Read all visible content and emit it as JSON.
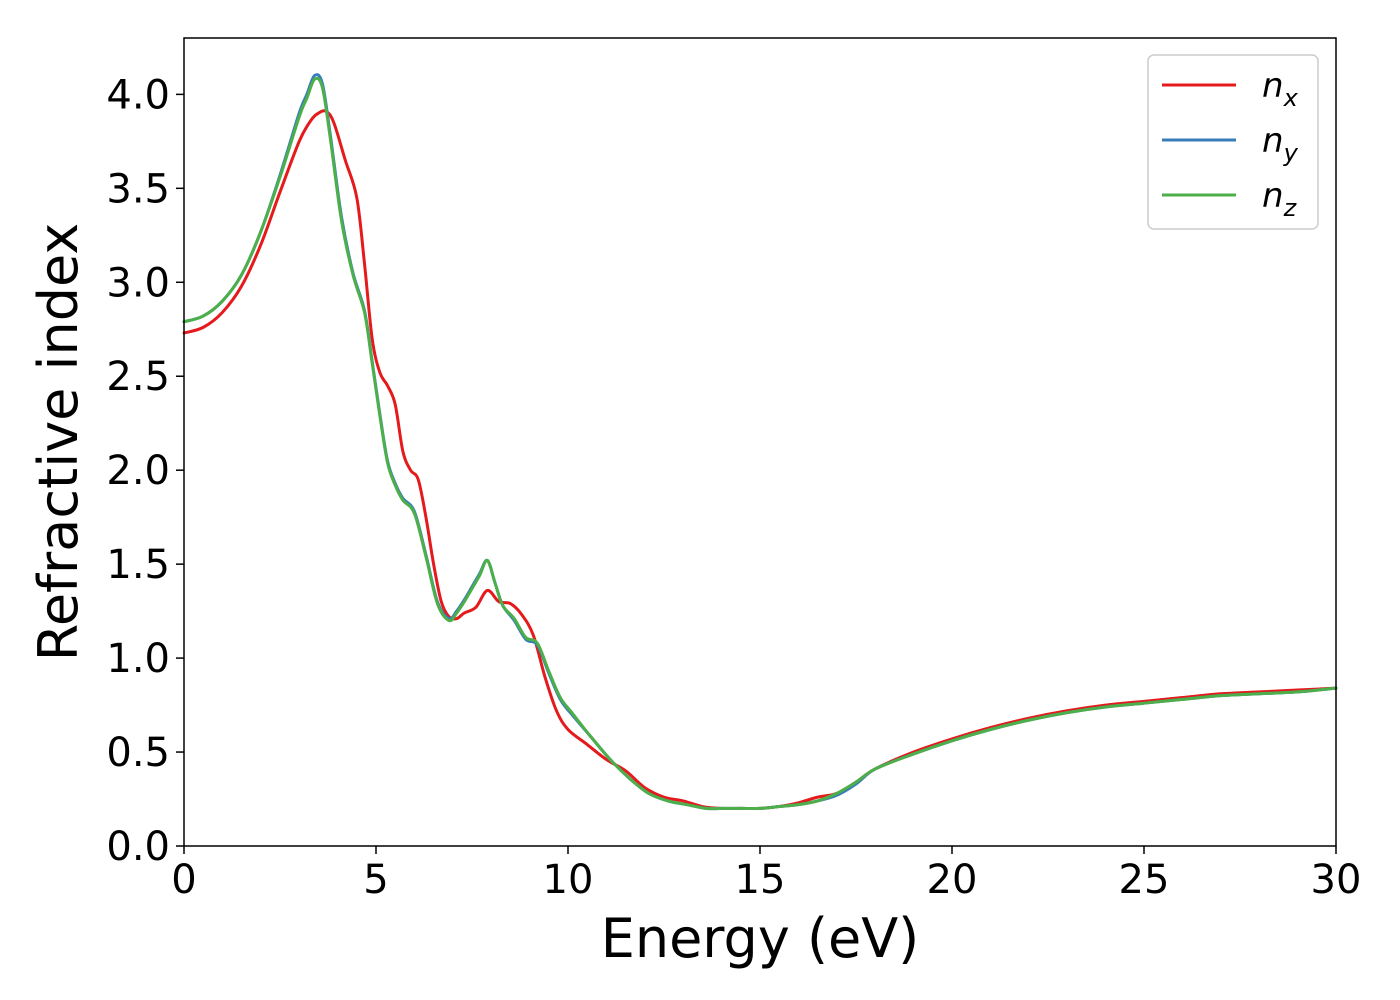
{
  "chart_data": {
    "type": "line",
    "xlabel": "Energy (eV)",
    "ylabel": "Refractive index",
    "xlim": [
      0,
      30
    ],
    "ylim": [
      0,
      4.3
    ],
    "xticks": [
      0,
      5,
      10,
      15,
      20,
      25,
      30
    ],
    "xtick_labels": [
      "0",
      "5",
      "10",
      "15",
      "20",
      "25",
      "30"
    ],
    "yticks": [
      0.0,
      0.5,
      1.0,
      1.5,
      2.0,
      2.5,
      3.0,
      3.5,
      4.0
    ],
    "ytick_labels": [
      "0.0",
      "0.5",
      "1.0",
      "1.5",
      "2.0",
      "2.5",
      "3.0",
      "3.5",
      "4.0"
    ],
    "grid": false,
    "legend_position": "top-right",
    "series": [
      {
        "name": "n",
        "subscript": "x",
        "color": "#e41a1c",
        "x": [
          0,
          0.5,
          1,
          1.5,
          2,
          2.5,
          3,
          3.3,
          3.5,
          3.7,
          3.9,
          4.2,
          4.5,
          4.7,
          4.9,
          5.1,
          5.3,
          5.5,
          5.7,
          5.9,
          6.1,
          6.3,
          6.5,
          6.7,
          6.9,
          7.1,
          7.3,
          7.6,
          7.9,
          8.2,
          8.5,
          8.8,
          9.1,
          9.4,
          9.7,
          10,
          10.5,
          11,
          11.5,
          12,
          12.5,
          13,
          13.5,
          14,
          14.5,
          15,
          15.5,
          16,
          16.5,
          17,
          17.5,
          18,
          19,
          20,
          21,
          22,
          23,
          24,
          25,
          26,
          27,
          28,
          29,
          30
        ],
        "y": [
          2.73,
          2.76,
          2.84,
          2.98,
          3.2,
          3.48,
          3.75,
          3.86,
          3.9,
          3.91,
          3.85,
          3.65,
          3.45,
          3.1,
          2.7,
          2.52,
          2.45,
          2.35,
          2.1,
          2.0,
          1.95,
          1.75,
          1.5,
          1.3,
          1.22,
          1.21,
          1.24,
          1.27,
          1.36,
          1.3,
          1.29,
          1.23,
          1.12,
          0.9,
          0.72,
          0.62,
          0.54,
          0.46,
          0.4,
          0.31,
          0.26,
          0.24,
          0.21,
          0.2,
          0.2,
          0.2,
          0.21,
          0.23,
          0.26,
          0.28,
          0.34,
          0.41,
          0.5,
          0.57,
          0.63,
          0.68,
          0.72,
          0.75,
          0.77,
          0.79,
          0.81,
          0.82,
          0.83,
          0.84
        ]
      },
      {
        "name": "n",
        "subscript": "y",
        "color": "#377eb8",
        "x": [
          0,
          0.5,
          1,
          1.5,
          2,
          2.5,
          3,
          3.2,
          3.4,
          3.6,
          3.8,
          4.1,
          4.4,
          4.7,
          4.9,
          5.1,
          5.3,
          5.5,
          5.7,
          6.0,
          6.3,
          6.6,
          6.9,
          7.1,
          7.3,
          7.5,
          7.7,
          7.9,
          8.1,
          8.3,
          8.6,
          8.9,
          9.2,
          9.5,
          9.8,
          10.1,
          10.6,
          11.1,
          11.6,
          12.1,
          12.6,
          13.1,
          13.6,
          14,
          14.5,
          15,
          15.5,
          16,
          16.5,
          17,
          17.5,
          18,
          19,
          20,
          21,
          22,
          23,
          24,
          25,
          26,
          27,
          28,
          29,
          30
        ],
        "y": [
          2.79,
          2.82,
          2.9,
          3.04,
          3.27,
          3.57,
          3.9,
          4.0,
          4.1,
          4.06,
          3.8,
          3.35,
          3.05,
          2.85,
          2.58,
          2.3,
          2.05,
          1.93,
          1.85,
          1.78,
          1.55,
          1.3,
          1.21,
          1.25,
          1.31,
          1.38,
          1.45,
          1.52,
          1.4,
          1.28,
          1.2,
          1.1,
          1.07,
          0.92,
          0.78,
          0.7,
          0.58,
          0.46,
          0.36,
          0.28,
          0.24,
          0.22,
          0.2,
          0.2,
          0.2,
          0.2,
          0.21,
          0.22,
          0.24,
          0.27,
          0.33,
          0.41,
          0.49,
          0.56,
          0.62,
          0.67,
          0.71,
          0.74,
          0.76,
          0.78,
          0.8,
          0.81,
          0.82,
          0.84
        ]
      },
      {
        "name": "n",
        "subscript": "z",
        "color": "#4daf4a",
        "x": [
          0,
          0.5,
          1,
          1.5,
          2,
          2.5,
          3,
          3.2,
          3.4,
          3.6,
          3.8,
          4.1,
          4.4,
          4.7,
          4.9,
          5.1,
          5.3,
          5.5,
          5.7,
          6.0,
          6.3,
          6.6,
          6.9,
          7.1,
          7.3,
          7.5,
          7.7,
          7.9,
          8.1,
          8.3,
          8.6,
          8.9,
          9.2,
          9.5,
          9.8,
          10.1,
          10.6,
          11.1,
          11.6,
          12.1,
          12.6,
          13.1,
          13.6,
          14,
          14.5,
          15,
          15.5,
          16,
          16.5,
          17,
          17.5,
          18,
          19,
          20,
          21,
          22,
          23,
          24,
          25,
          26,
          27,
          28,
          29,
          30
        ],
        "y": [
          2.79,
          2.82,
          2.9,
          3.04,
          3.27,
          3.56,
          3.88,
          3.98,
          4.08,
          4.04,
          3.78,
          3.33,
          3.04,
          2.84,
          2.57,
          2.29,
          2.04,
          1.92,
          1.84,
          1.77,
          1.54,
          1.29,
          1.2,
          1.24,
          1.3,
          1.37,
          1.44,
          1.52,
          1.4,
          1.28,
          1.21,
          1.11,
          1.08,
          0.93,
          0.79,
          0.71,
          0.58,
          0.46,
          0.36,
          0.28,
          0.24,
          0.22,
          0.2,
          0.2,
          0.2,
          0.2,
          0.21,
          0.22,
          0.24,
          0.28,
          0.34,
          0.41,
          0.49,
          0.56,
          0.62,
          0.67,
          0.71,
          0.74,
          0.76,
          0.78,
          0.8,
          0.81,
          0.82,
          0.84
        ]
      }
    ]
  }
}
